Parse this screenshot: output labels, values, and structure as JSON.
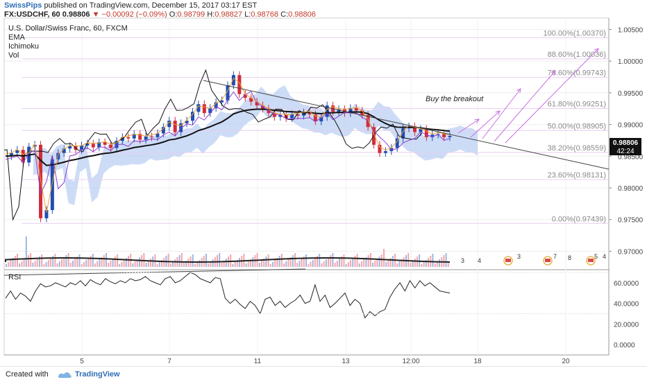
{
  "header": {
    "author": "SwissPips",
    "published_text": "published on TradingView.com, December 15, 2017 03:17 EST",
    "symbol": "FX:USDCHF, 60",
    "last_price": "0.98806",
    "change_arrow": "▼",
    "change": "−0.00092 (−0.09%)",
    "o_label": "O:",
    "o_value": "0.98799",
    "h_label": "H:",
    "h_value": "0.98827",
    "l_label": "L:",
    "l_value": "0.98768",
    "c_label": "C:",
    "c_value": "0.98806"
  },
  "legend": [
    "U.S. Dollar/Swiss Franc, 60, FXCM",
    "EMA",
    "Ichimoku",
    "Vol"
  ],
  "annotation": "Buy the breakout",
  "price_tag": "0.98806",
  "countdown_tag": "42:24",
  "rsi_label": "RSI",
  "event_counts": [
    "3",
    "4",
    "3",
    "7",
    "8",
    "5",
    "4"
  ],
  "footer": {
    "created_with": "Created with",
    "brand": "TradingView"
  },
  "colors": {
    "up": "#1e4fb3",
    "down": "#d22c3c",
    "fib": "#c86ee0",
    "cloud": "#b8cdf2",
    "ema": "#111111"
  },
  "chart_data": [
    {
      "type": "candlestick",
      "title": "U.S. Dollar/Swiss Franc, 60, FXCM",
      "xlabel": "",
      "ylabel": "",
      "x_tick_labels": [
        "5",
        "7",
        "11",
        "13",
        "12:00",
        "18",
        "20"
      ],
      "y_tick_labels": [
        "0.97000",
        "0.97500",
        "0.98000",
        "0.98500",
        "0.99000",
        "0.99500",
        "1.00000",
        "1.00500"
      ],
      "ylim": [
        0.9672,
        1.0068
      ],
      "last_close": 0.98806,
      "fibonacci_levels": [
        {
          "label": "100.00%(1.00370)",
          "value": 1.0037
        },
        {
          "label": "88.60%(1.00036)",
          "value": 1.00036
        },
        {
          "label": "78.60%(0.99743)",
          "value": 0.99743
        },
        {
          "label": "61.80%(0.99251)",
          "value": 0.99251
        },
        {
          "label": "50.00%(0.98905)",
          "value": 0.98905
        },
        {
          "label": "38.20%(0.98559)",
          "value": 0.98559
        },
        {
          "label": "23.60%(0.98131)",
          "value": 0.98131
        },
        {
          "label": "0.00%(0.97439)",
          "value": 0.97439
        }
      ],
      "close_path": [
        0.985,
        0.9855,
        0.986,
        0.984,
        0.9865,
        0.9868,
        0.9752,
        0.9765,
        0.9845,
        0.9855,
        0.9862,
        0.9866,
        0.986,
        0.9867,
        0.987,
        0.9864,
        0.9872,
        0.9868,
        0.9863,
        0.9874,
        0.988,
        0.9878,
        0.9885,
        0.9876,
        0.9881,
        0.988,
        0.9886,
        0.9896,
        0.9906,
        0.9888,
        0.9902,
        0.9906,
        0.992,
        0.9932,
        0.9918,
        0.9926,
        0.9935,
        0.9938,
        0.9962,
        0.9978,
        0.9948,
        0.9942,
        0.9936,
        0.993,
        0.9925,
        0.9918,
        0.9912,
        0.9915,
        0.991,
        0.9916,
        0.9914,
        0.9919,
        0.9916,
        0.9905,
        0.9912,
        0.993,
        0.992,
        0.9924,
        0.9918,
        0.9926,
        0.9922,
        0.9915,
        0.9896,
        0.9868,
        0.9855,
        0.9858,
        0.9863,
        0.9878,
        0.9894,
        0.9897,
        0.9888,
        0.9893,
        0.988,
        0.9884,
        0.9885,
        0.988,
        0.9882
      ]
    },
    {
      "type": "line",
      "title": "RSI",
      "ylim": [
        -10,
        72
      ],
      "y_tick_labels": [
        "60.0000",
        "40.0000",
        "20.0000",
        "0.0000"
      ],
      "values": [
        45,
        52,
        44,
        50,
        47,
        42,
        52,
        59,
        56,
        57,
        60,
        58,
        56,
        60,
        58,
        62,
        57,
        63,
        60,
        58,
        64,
        61,
        59,
        62,
        60,
        64,
        62,
        63,
        66,
        62,
        60,
        58,
        64,
        66,
        60,
        62,
        66,
        70,
        68,
        64,
        62,
        60,
        65,
        64,
        45,
        40,
        44,
        39,
        35,
        42,
        38,
        30,
        44,
        46,
        38,
        42,
        36,
        40,
        43,
        48,
        40,
        42,
        58,
        42,
        48,
        36,
        40,
        45,
        50,
        38,
        44,
        40,
        26,
        32,
        28,
        32,
        34,
        46,
        54,
        60,
        52,
        62,
        55,
        62,
        57,
        60,
        56,
        52,
        51,
        50
      ]
    }
  ]
}
